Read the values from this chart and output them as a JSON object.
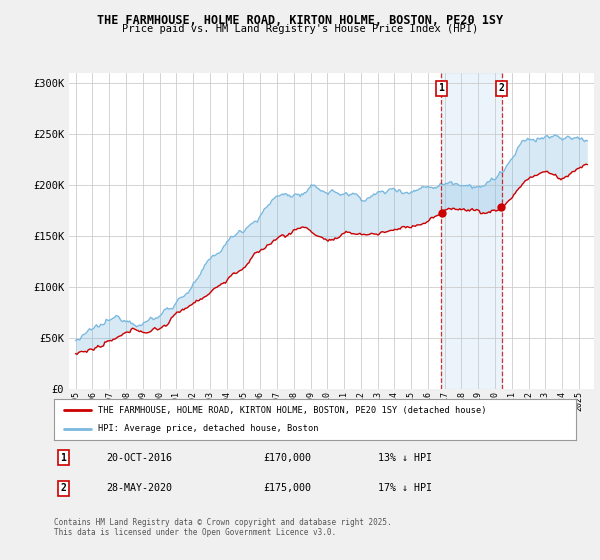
{
  "title": "THE FARMHOUSE, HOLME ROAD, KIRTON HOLME, BOSTON, PE20 1SY",
  "subtitle": "Price paid vs. HM Land Registry's House Price Index (HPI)",
  "ylim": [
    0,
    310000
  ],
  "yticks": [
    0,
    50000,
    100000,
    150000,
    200000,
    250000,
    300000
  ],
  "ytick_labels": [
    "£0",
    "£50K",
    "£100K",
    "£150K",
    "£200K",
    "£250K",
    "£300K"
  ],
  "hpi_color": "#7ab8e0",
  "price_color": "#cc0000",
  "marker1_x": 2016.8,
  "marker1_label": "1",
  "marker2_x": 2020.4,
  "marker2_label": "2",
  "marker1_price": 170000,
  "marker2_price": 175000,
  "legend_property": "THE FARMHOUSE, HOLME ROAD, KIRTON HOLME, BOSTON, PE20 1SY (detached house)",
  "legend_hpi": "HPI: Average price, detached house, Boston",
  "note1_num": "1",
  "note1_date": "20-OCT-2016",
  "note1_price": "£170,000",
  "note1_hpi": "13% ↓ HPI",
  "note2_num": "2",
  "note2_date": "28-MAY-2020",
  "note2_price": "£175,000",
  "note2_hpi": "17% ↓ HPI",
  "footer": "Contains HM Land Registry data © Crown copyright and database right 2025.\nThis data is licensed under the Open Government Licence v3.0.",
  "bg_color": "#f0f0f0",
  "plot_bg_color": "#ffffff"
}
